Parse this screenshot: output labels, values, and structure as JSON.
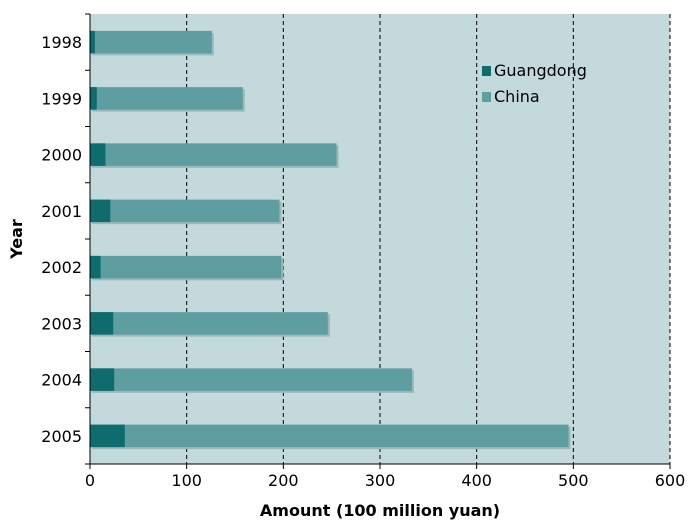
{
  "chart_data": {
    "type": "bar",
    "orientation": "horizontal",
    "stacked": false,
    "categories": [
      "1998",
      "1999",
      "2000",
      "2001",
      "2002",
      "2003",
      "2004",
      "2005"
    ],
    "series": [
      {
        "name": "China",
        "values": [
          126,
          158,
          255,
          196,
          198,
          246,
          333,
          495
        ],
        "color": "#5f9ea0"
      },
      {
        "name": "Guangdong",
        "values": [
          5,
          7,
          16,
          21,
          11,
          24,
          25,
          36
        ],
        "color": "#0e6b6e"
      }
    ],
    "title": "",
    "xlabel": "Amount (100 million yuan)",
    "ylabel": "Year",
    "xlim": [
      0,
      600
    ],
    "xticks": [
      "0",
      "100",
      "200",
      "300",
      "400",
      "500",
      "600"
    ],
    "grid": "vertical-dashed",
    "legend": "top-right",
    "legend_entries": [
      "Guangdong",
      "China"
    ],
    "plot_background": "#c3d9db"
  }
}
